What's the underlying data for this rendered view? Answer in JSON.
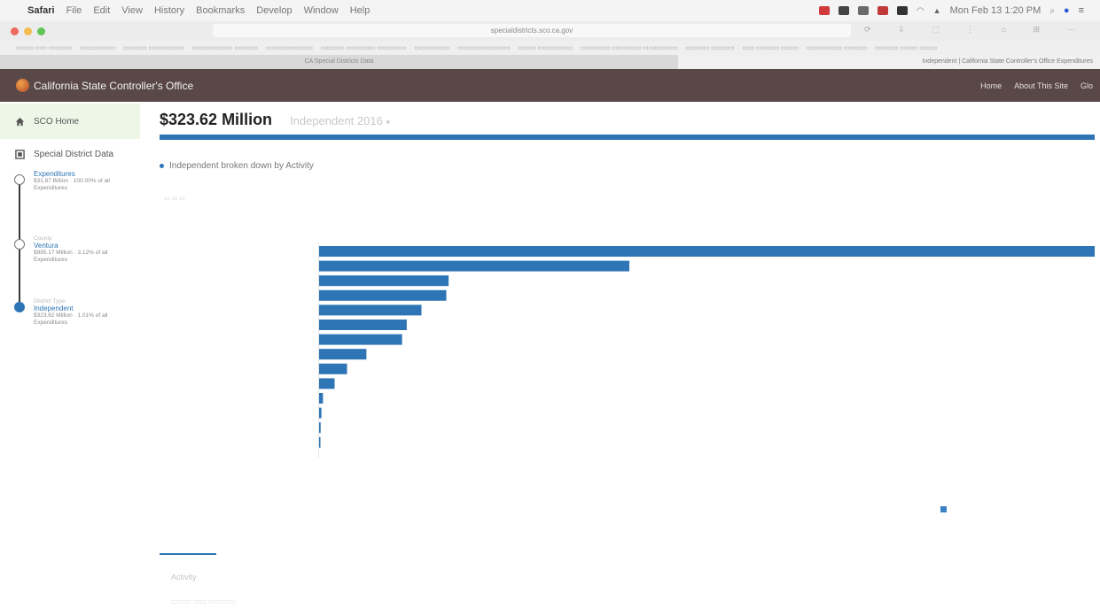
{
  "menubar": {
    "app": "Safari",
    "items": [
      "File",
      "Edit",
      "View",
      "History",
      "Bookmarks",
      "Develop",
      "Window",
      "Help"
    ],
    "clock": "Mon Feb 13 1:20 PM"
  },
  "browser": {
    "url": "specialdistricts.sco.ca.gov"
  },
  "tabs": {
    "left": "CA Special Districts Data",
    "right": "Independent | California State Controller's Office Expenditures"
  },
  "navbar": {
    "brand": "California State Controller's Office",
    "links": [
      "Home",
      "About This Site",
      "Glo"
    ]
  },
  "sidebar": {
    "home": "SCO Home",
    "data": "Special District Data",
    "steps": [
      {
        "label": "Expenditures",
        "detail": "$31.87 Billion · 100.00% of all Expenditures"
      },
      {
        "label": "Ventura",
        "detail": "$995.17 Million · 3.12% of all Expenditures",
        "kicker": "County"
      },
      {
        "label": "Independent",
        "detail": "$323.62 Million · 1.01% of all Expenditures",
        "kicker": "District Type"
      }
    ]
  },
  "main": {
    "title": "$323.62 Million",
    "subtitle": "Independent 2016",
    "legend": "Independent broken down by Activity",
    "bottom_tab": "Activity"
  },
  "chart_data": {
    "type": "bar",
    "orientation": "horizontal",
    "series": [
      {
        "values": [
          100,
          40,
          16.7,
          16.4,
          13.2,
          11.3,
          10.7,
          6.1,
          3.6,
          2.0,
          0.5,
          0.3,
          0.2,
          0.1
        ]
      }
    ],
    "xlim": [
      0,
      100
    ],
    "color": "#2e75b6"
  },
  "colors": {
    "accent": "#2e75b6",
    "navbar": "#5a4848"
  }
}
